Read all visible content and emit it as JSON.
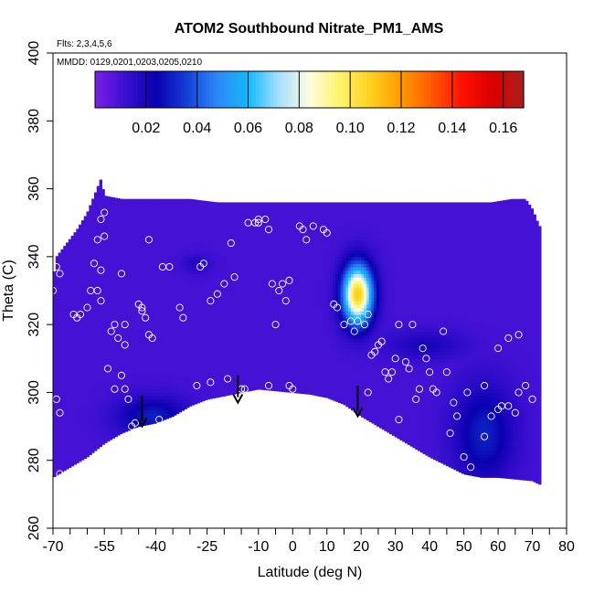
{
  "chart_data": {
    "type": "heatmap",
    "title": "ATOM2 Southbound Nitrate_PM1_AMS",
    "flights_label": "Flts: 2,3,4,5,6",
    "dates_label": "MMDD: 0129,0201,0203,0205,0210",
    "xlabel": "Latitude (deg N)",
    "ylabel": "Theta (C)",
    "xlim": [
      -70,
      80
    ],
    "ylim": [
      260,
      400
    ],
    "x_ticks": [
      -70,
      -55,
      -40,
      -25,
      -10,
      0,
      10,
      20,
      30,
      40,
      50,
      60,
      70,
      80
    ],
    "x_minor_ticks": [
      -65,
      -60,
      -50,
      -45,
      -35,
      -30,
      -20,
      -15,
      -5,
      5,
      15,
      25,
      35,
      45,
      55,
      65,
      75
    ],
    "y_ticks": [
      260,
      280,
      300,
      320,
      340,
      360,
      380,
      400
    ],
    "colorbar": {
      "min": 0.0,
      "max": 0.168,
      "ticks": [
        0.02,
        0.04,
        0.06,
        0.08,
        0.1,
        0.12,
        0.14,
        0.16
      ],
      "tick_labels": [
        "0.02",
        "0.04",
        "0.06",
        "0.08",
        "0.10",
        "0.12",
        "0.14",
        "0.16"
      ],
      "colors": [
        "#7a1fe8",
        "#3a0fd0",
        "#0a00b0",
        "#1440d8",
        "#2e88f8",
        "#12b8fa",
        "#a8e0ff",
        "#fffce0",
        "#fff36b",
        "#ffd020",
        "#ff9a00",
        "#ff5a00",
        "#ff1000",
        "#d80000",
        "#a82020"
      ]
    },
    "background_value": 0.01,
    "region": {
      "upper_boundary": [
        [
          -70,
          333
        ],
        [
          -69,
          340
        ],
        [
          -66,
          344
        ],
        [
          -63,
          348
        ],
        [
          -60,
          353
        ],
        [
          -58,
          358
        ],
        [
          -56,
          363
        ],
        [
          -55,
          358
        ],
        [
          -50,
          357
        ],
        [
          -40,
          357
        ],
        [
          -30,
          357
        ],
        [
          -22,
          356
        ],
        [
          -10,
          356
        ],
        [
          0,
          356
        ],
        [
          10,
          356
        ],
        [
          20,
          356
        ],
        [
          30,
          356
        ],
        [
          40,
          356
        ],
        [
          50,
          356
        ],
        [
          58,
          356
        ],
        [
          64,
          357
        ],
        [
          68,
          357
        ],
        [
          70,
          354
        ],
        [
          72,
          349
        ]
      ],
      "lower_boundary": [
        [
          -70,
          275
        ],
        [
          -65,
          278
        ],
        [
          -60,
          281
        ],
        [
          -55,
          285
        ],
        [
          -50,
          288
        ],
        [
          -45,
          290
        ],
        [
          -40,
          291
        ],
        [
          -35,
          293
        ],
        [
          -30,
          296
        ],
        [
          -25,
          298
        ],
        [
          -20,
          299
        ],
        [
          -15,
          300
        ],
        [
          -10,
          301
        ],
        [
          -5,
          300.5
        ],
        [
          0,
          300
        ],
        [
          5,
          299.5
        ],
        [
          10,
          298.5
        ],
        [
          15,
          296.5
        ],
        [
          20,
          293
        ],
        [
          25,
          290
        ],
        [
          30,
          287
        ],
        [
          35,
          284
        ],
        [
          40,
          281
        ],
        [
          45,
          278.5
        ],
        [
          50,
          276
        ],
        [
          55,
          275
        ],
        [
          60,
          275
        ],
        [
          65,
          274.5
        ],
        [
          70,
          274
        ],
        [
          72,
          273
        ]
      ]
    },
    "hotspots": [
      {
        "lat": 19,
        "theta": 329,
        "value": 0.11,
        "lat_spread": 3,
        "theta_spread": 6
      },
      {
        "lat": -41,
        "theta": 293,
        "value": 0.03,
        "lat_spread": 7,
        "theta_spread": 4
      },
      {
        "lat": -28,
        "theta": 338,
        "value": 0.018,
        "lat_spread": 3,
        "theta_spread": 2
      },
      {
        "lat": 56,
        "theta": 288,
        "value": 0.03,
        "lat_spread": 6,
        "theta_spread": 10
      },
      {
        "lat": 39,
        "theta": 314,
        "value": 0.02,
        "lat_spread": 8,
        "theta_spread": 3
      }
    ],
    "arrows": [
      {
        "lat": -44,
        "theta_top": 299,
        "theta_bottom": 290
      },
      {
        "lat": -16,
        "theta_top": 305,
        "theta_bottom": 297
      },
      {
        "lat": 19,
        "theta_top": 302,
        "theta_bottom": 293
      }
    ],
    "sample_points": [
      [
        -70,
        330
      ],
      [
        -69,
        337
      ],
      [
        -68,
        335
      ],
      [
        -68,
        276
      ],
      [
        -69,
        298
      ],
      [
        -68,
        294
      ],
      [
        -64,
        323
      ],
      [
        -63,
        322
      ],
      [
        -62,
        323
      ],
      [
        -60,
        325
      ],
      [
        -57,
        330
      ],
      [
        -56,
        327
      ],
      [
        -57,
        345
      ],
      [
        -58,
        338
      ],
      [
        -56,
        336
      ],
      [
        -55,
        346
      ],
      [
        -55,
        353
      ],
      [
        -56,
        351
      ],
      [
        -53,
        318
      ],
      [
        -52,
        320
      ],
      [
        -51,
        316
      ],
      [
        -50,
        335
      ],
      [
        -49,
        320
      ],
      [
        -49,
        314
      ],
      [
        -50,
        305
      ],
      [
        -49,
        301
      ],
      [
        -48,
        298
      ],
      [
        -47,
        290
      ],
      [
        -47,
        285
      ],
      [
        -46,
        283
      ],
      [
        -45,
        281
      ],
      [
        -45,
        326
      ],
      [
        -44,
        325
      ],
      [
        -44,
        324
      ],
      [
        -43,
        322
      ],
      [
        -42,
        317
      ],
      [
        -41,
        316
      ],
      [
        -42,
        345
      ],
      [
        -38,
        337
      ],
      [
        -36,
        337
      ],
      [
        -33,
        325
      ],
      [
        -32,
        322
      ],
      [
        -30,
        291
      ],
      [
        -27,
        337
      ],
      [
        -26,
        338
      ],
      [
        -24,
        327
      ],
      [
        -22,
        329
      ],
      [
        -20,
        332
      ],
      [
        -18,
        344
      ],
      [
        -17,
        334
      ],
      [
        -15,
        301
      ],
      [
        -13,
        350
      ],
      [
        -11,
        350
      ],
      [
        -10,
        351
      ],
      [
        -10,
        350
      ],
      [
        -8,
        351
      ],
      [
        -7,
        348
      ],
      [
        -6,
        332
      ],
      [
        -5,
        320
      ],
      [
        -4,
        330
      ],
      [
        -3,
        332
      ],
      [
        -2,
        327
      ],
      [
        -1,
        333
      ],
      [
        -1,
        302
      ],
      [
        0,
        301
      ],
      [
        2,
        349
      ],
      [
        3,
        348
      ],
      [
        4,
        345
      ],
      [
        6,
        349
      ],
      [
        9,
        348
      ],
      [
        10,
        347
      ],
      [
        12,
        326
      ],
      [
        13,
        325
      ],
      [
        15,
        320
      ],
      [
        17,
        321
      ],
      [
        18,
        318
      ],
      [
        19,
        321
      ],
      [
        21,
        320
      ],
      [
        22,
        323
      ],
      [
        23,
        311
      ],
      [
        24,
        312
      ],
      [
        25,
        314
      ],
      [
        26,
        315
      ],
      [
        27,
        306
      ],
      [
        28,
        304
      ],
      [
        29,
        306
      ],
      [
        30,
        310
      ],
      [
        31,
        320
      ],
      [
        33,
        309
      ],
      [
        34,
        307
      ],
      [
        35,
        320
      ],
      [
        36,
        298
      ],
      [
        38,
        313
      ],
      [
        39,
        310
      ],
      [
        40,
        306
      ],
      [
        41,
        301
      ],
      [
        44,
        318
      ],
      [
        45,
        306
      ],
      [
        46,
        288
      ],
      [
        48,
        293
      ],
      [
        50,
        281
      ],
      [
        52,
        278
      ],
      [
        54,
        274
      ],
      [
        56,
        287
      ],
      [
        58,
        293
      ],
      [
        60,
        295
      ],
      [
        61,
        296
      ],
      [
        63,
        296
      ],
      [
        65,
        294
      ],
      [
        66,
        300
      ],
      [
        68,
        302
      ],
      [
        -59,
        330
      ],
      [
        -54,
        307
      ],
      [
        -52,
        301
      ],
      [
        -46,
        291
      ],
      [
        -44,
        287
      ],
      [
        -39,
        292
      ],
      [
        -35,
        290
      ],
      [
        -28,
        302
      ],
      [
        -24,
        303
      ],
      [
        -19,
        304
      ],
      [
        -14,
        301
      ],
      [
        -7,
        302
      ],
      [
        22,
        300
      ],
      [
        31,
        292
      ],
      [
        37,
        301
      ],
      [
        42,
        300
      ],
      [
        47,
        297
      ],
      [
        51,
        300
      ],
      [
        56,
        302
      ],
      [
        60,
        313
      ],
      [
        63,
        316
      ],
      [
        66,
        317
      ],
      [
        70,
        298
      ]
    ]
  }
}
